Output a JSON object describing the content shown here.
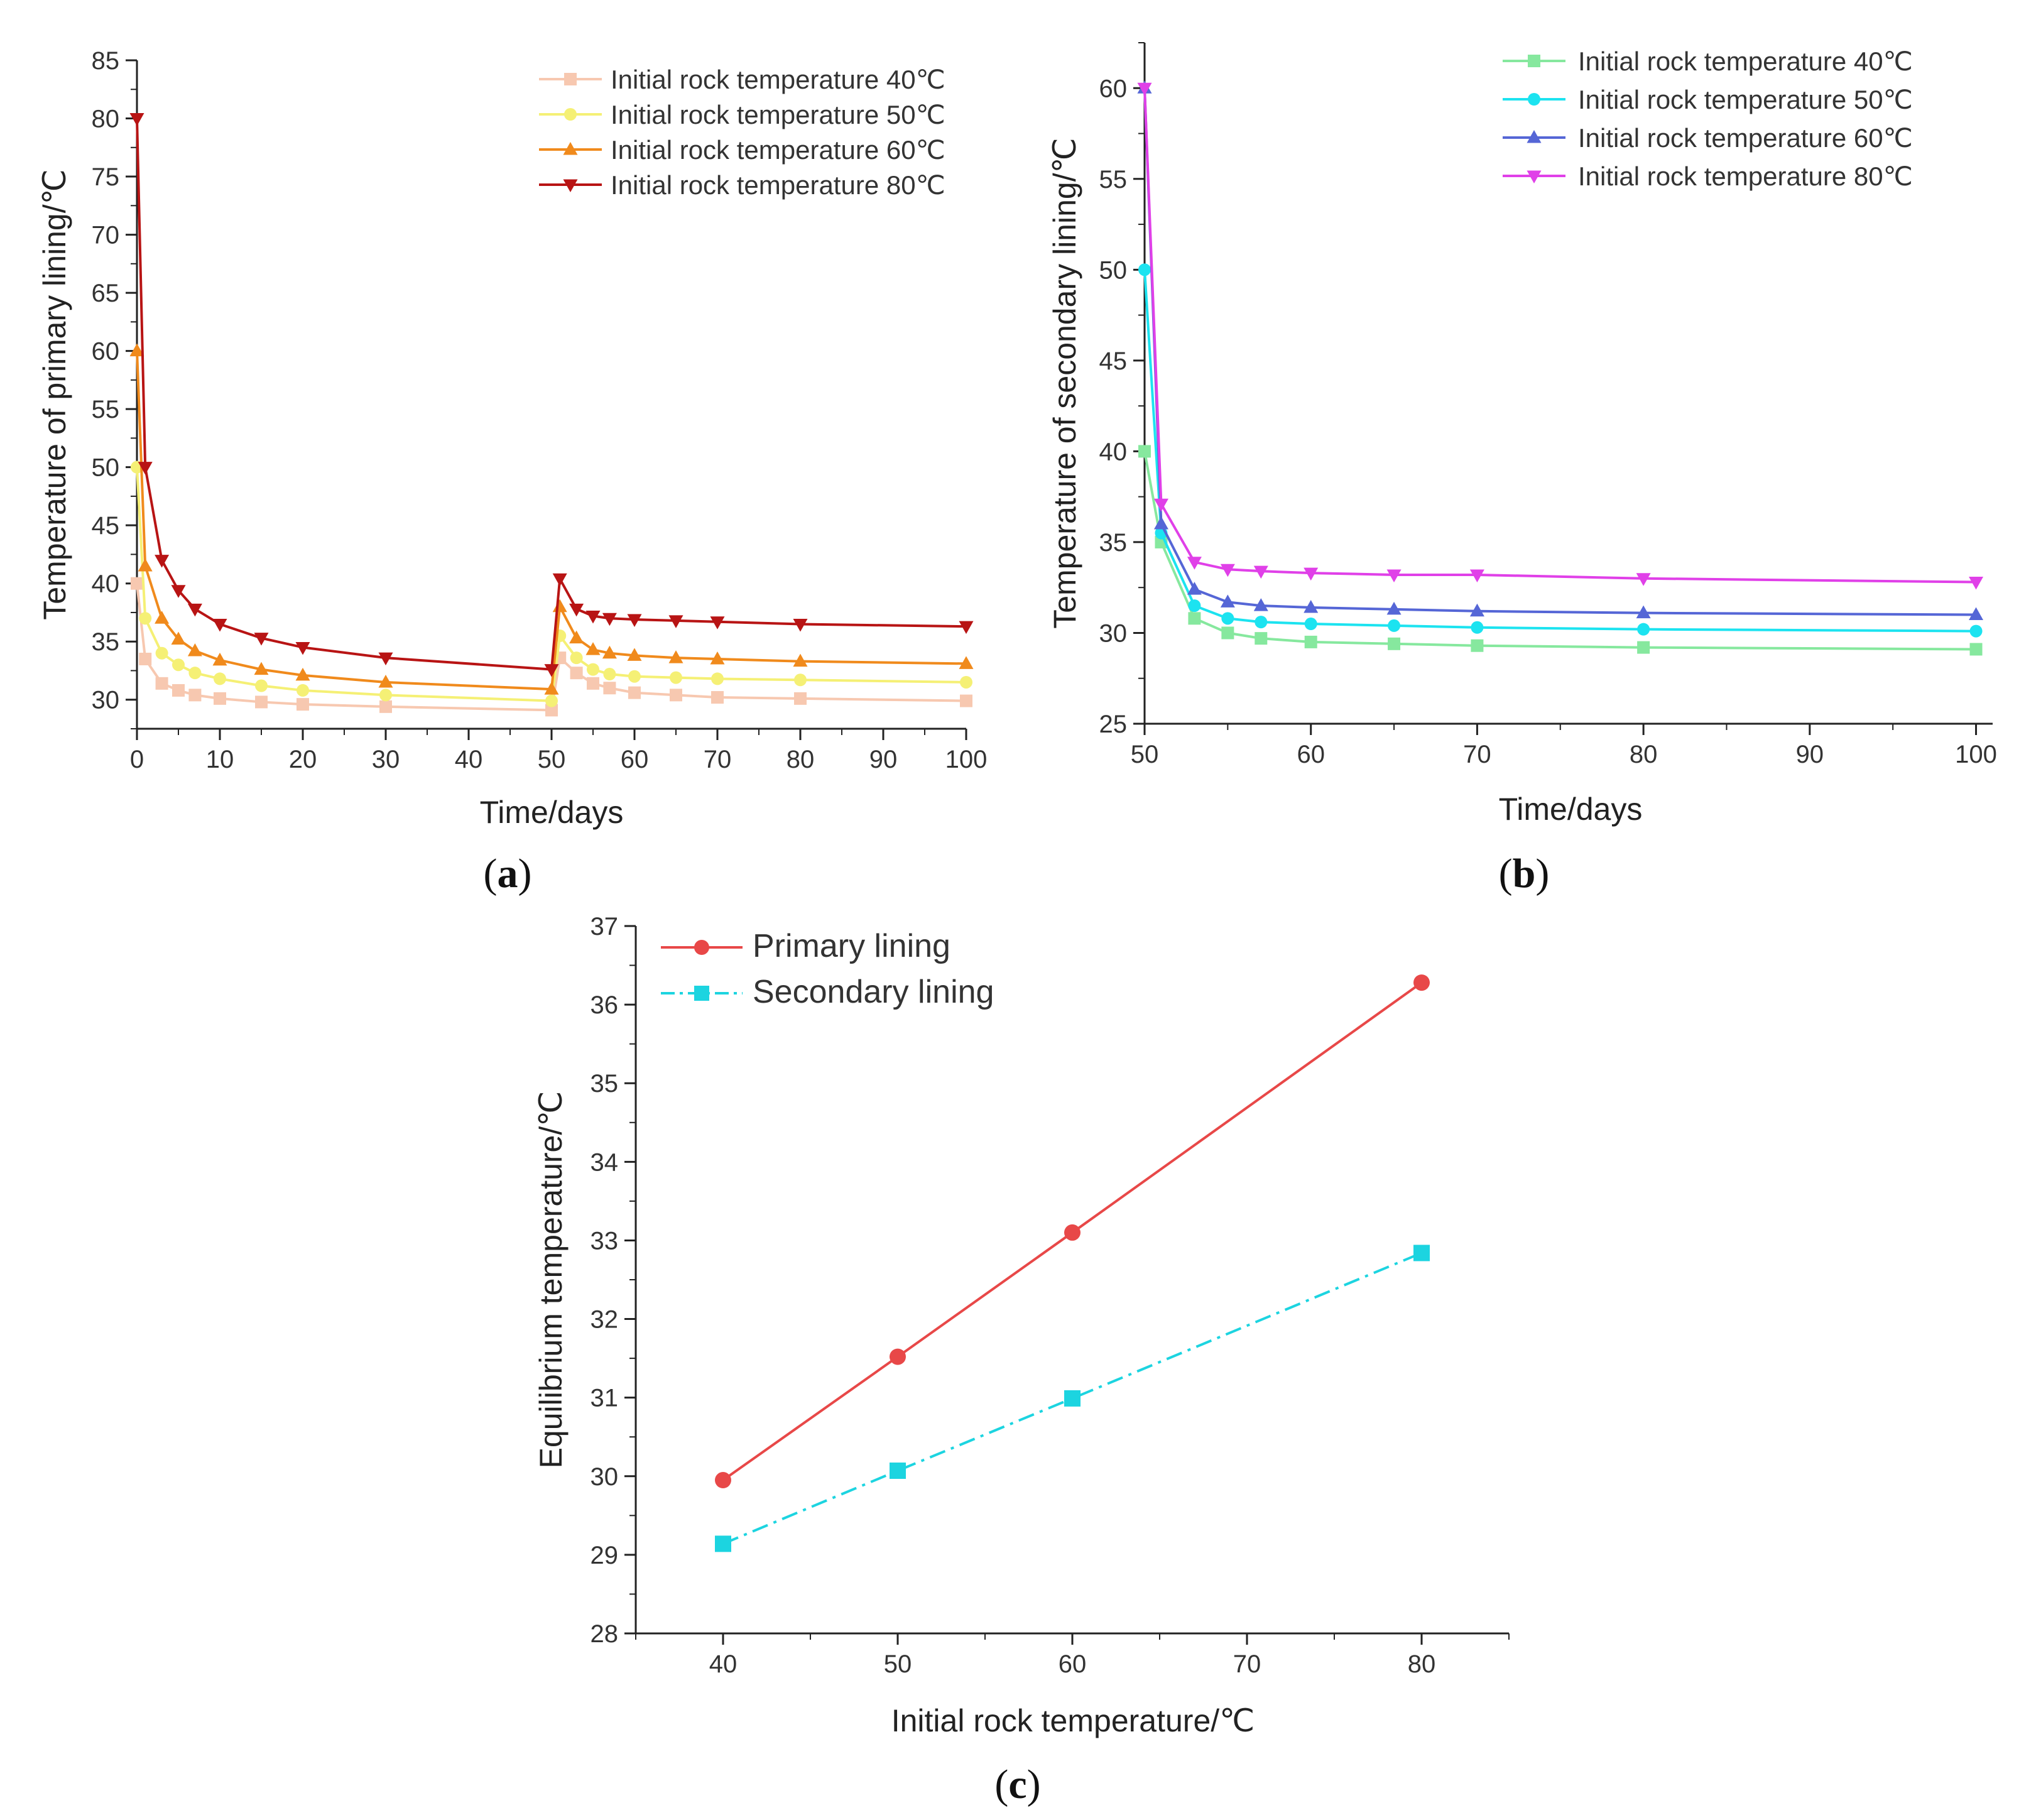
{
  "chart_data": [
    {
      "panel_label": "a",
      "type": "line",
      "xlabel": "Time/days",
      "ylabel": "Temperature of primary lining/℃",
      "xlim": [
        0,
        100
      ],
      "ylim": [
        27.5,
        85
      ],
      "xticks": [
        0,
        10,
        20,
        30,
        40,
        50,
        60,
        70,
        80,
        90,
        100
      ],
      "yticks": [
        30,
        35,
        40,
        45,
        50,
        55,
        60,
        65,
        70,
        75,
        80,
        85
      ],
      "legend_position": "top-right",
      "series": [
        {
          "name": "Initial rock temperature 40℃",
          "color": "#f7c8b0",
          "marker": "square",
          "x": [
            0,
            1,
            3,
            5,
            7,
            10,
            15,
            20,
            30,
            50,
            51,
            53,
            55,
            57,
            60,
            65,
            70,
            80,
            100
          ],
          "y": [
            40,
            33.5,
            31.4,
            30.8,
            30.4,
            30.1,
            29.8,
            29.6,
            29.4,
            29.1,
            33.6,
            32.3,
            31.4,
            31.0,
            30.6,
            30.4,
            30.2,
            30.1,
            29.9
          ]
        },
        {
          "name": "Initial rock temperature 50℃",
          "color": "#f5f075",
          "marker": "circle",
          "x": [
            0,
            1,
            3,
            5,
            7,
            10,
            15,
            20,
            30,
            50,
            51,
            53,
            55,
            57,
            60,
            65,
            70,
            80,
            100
          ],
          "y": [
            50,
            37.0,
            34.0,
            33.0,
            32.3,
            31.8,
            31.2,
            30.8,
            30.4,
            29.9,
            35.5,
            33.6,
            32.6,
            32.2,
            32.0,
            31.9,
            31.8,
            31.7,
            31.5
          ]
        },
        {
          "name": "Initial rock temperature 60℃",
          "color": "#f08a1c",
          "marker": "triangle-up",
          "x": [
            0,
            1,
            3,
            5,
            7,
            10,
            15,
            20,
            30,
            50,
            51,
            53,
            55,
            57,
            60,
            65,
            70,
            80,
            100
          ],
          "y": [
            60,
            41.5,
            37.0,
            35.2,
            34.2,
            33.4,
            32.6,
            32.1,
            31.5,
            30.9,
            38.0,
            35.3,
            34.3,
            34.0,
            33.8,
            33.6,
            33.5,
            33.3,
            33.1
          ]
        },
        {
          "name": "Initial rock temperature 80℃",
          "color": "#b81414",
          "marker": "triangle-down",
          "x": [
            0,
            1,
            3,
            5,
            7,
            10,
            15,
            20,
            30,
            50,
            51,
            53,
            55,
            57,
            60,
            65,
            70,
            80,
            100
          ],
          "y": [
            80,
            50.0,
            42.0,
            39.4,
            37.8,
            36.5,
            35.3,
            34.5,
            33.6,
            32.6,
            40.4,
            37.8,
            37.2,
            37.0,
            36.9,
            36.8,
            36.7,
            36.5,
            36.3
          ]
        }
      ]
    },
    {
      "panel_label": "b",
      "type": "line",
      "xlabel": "Time/days",
      "ylabel": "Temperature of secondary lining/℃",
      "xlim": [
        50,
        101
      ],
      "ylim": [
        25,
        62.5
      ],
      "xticks": [
        50,
        60,
        70,
        80,
        90,
        100
      ],
      "yticks": [
        25,
        30,
        35,
        40,
        45,
        50,
        55,
        60
      ],
      "legend_position": "top-right",
      "series": [
        {
          "name": "Initial rock temperature 40℃",
          "color": "#86e89e",
          "marker": "square",
          "x": [
            50,
            51,
            53,
            55,
            57,
            60,
            65,
            70,
            80,
            100
          ],
          "y": [
            40,
            35.0,
            30.8,
            30.0,
            29.7,
            29.5,
            29.4,
            29.3,
            29.2,
            29.1
          ]
        },
        {
          "name": "Initial rock temperature 50℃",
          "color": "#1ce3f0",
          "marker": "circle",
          "x": [
            50,
            51,
            53,
            55,
            57,
            60,
            65,
            70,
            80,
            100
          ],
          "y": [
            50,
            35.5,
            31.5,
            30.8,
            30.6,
            30.5,
            30.4,
            30.3,
            30.2,
            30.1
          ]
        },
        {
          "name": "Initial rock temperature 60℃",
          "color": "#5566d6",
          "marker": "triangle-up",
          "x": [
            50,
            51,
            53,
            55,
            57,
            60,
            65,
            70,
            80,
            100
          ],
          "y": [
            60,
            36.0,
            32.4,
            31.7,
            31.5,
            31.4,
            31.3,
            31.2,
            31.1,
            31.0
          ]
        },
        {
          "name": "Initial rock temperature 80℃",
          "color": "#e040e8",
          "marker": "triangle-down",
          "x": [
            50,
            51,
            53,
            55,
            57,
            60,
            65,
            70,
            80,
            100
          ],
          "y": [
            60,
            37.1,
            33.9,
            33.5,
            33.4,
            33.3,
            33.2,
            33.2,
            33.0,
            32.8
          ]
        }
      ]
    },
    {
      "panel_label": "c",
      "type": "line",
      "xlabel": "Initial rock temperature/℃",
      "ylabel": "Equilibrium temperature/℃",
      "xlim": [
        35,
        85
      ],
      "ylim": [
        28,
        37
      ],
      "xticks": [
        40,
        50,
        60,
        70,
        80
      ],
      "yticks": [
        28,
        29,
        30,
        31,
        32,
        33,
        34,
        35,
        36,
        37
      ],
      "legend_position": "top-left",
      "series": [
        {
          "name": "Primary lining",
          "color": "#e84848",
          "marker": "circle",
          "dash": "solid",
          "x": [
            40,
            50,
            60,
            80
          ],
          "y": [
            29.95,
            31.52,
            33.1,
            36.28
          ]
        },
        {
          "name": "Secondary lining",
          "color": "#1cd4e0",
          "marker": "square",
          "dash": "dashdot",
          "x": [
            40,
            50,
            60,
            80
          ],
          "y": [
            29.14,
            30.07,
            30.99,
            32.84
          ]
        }
      ]
    }
  ]
}
